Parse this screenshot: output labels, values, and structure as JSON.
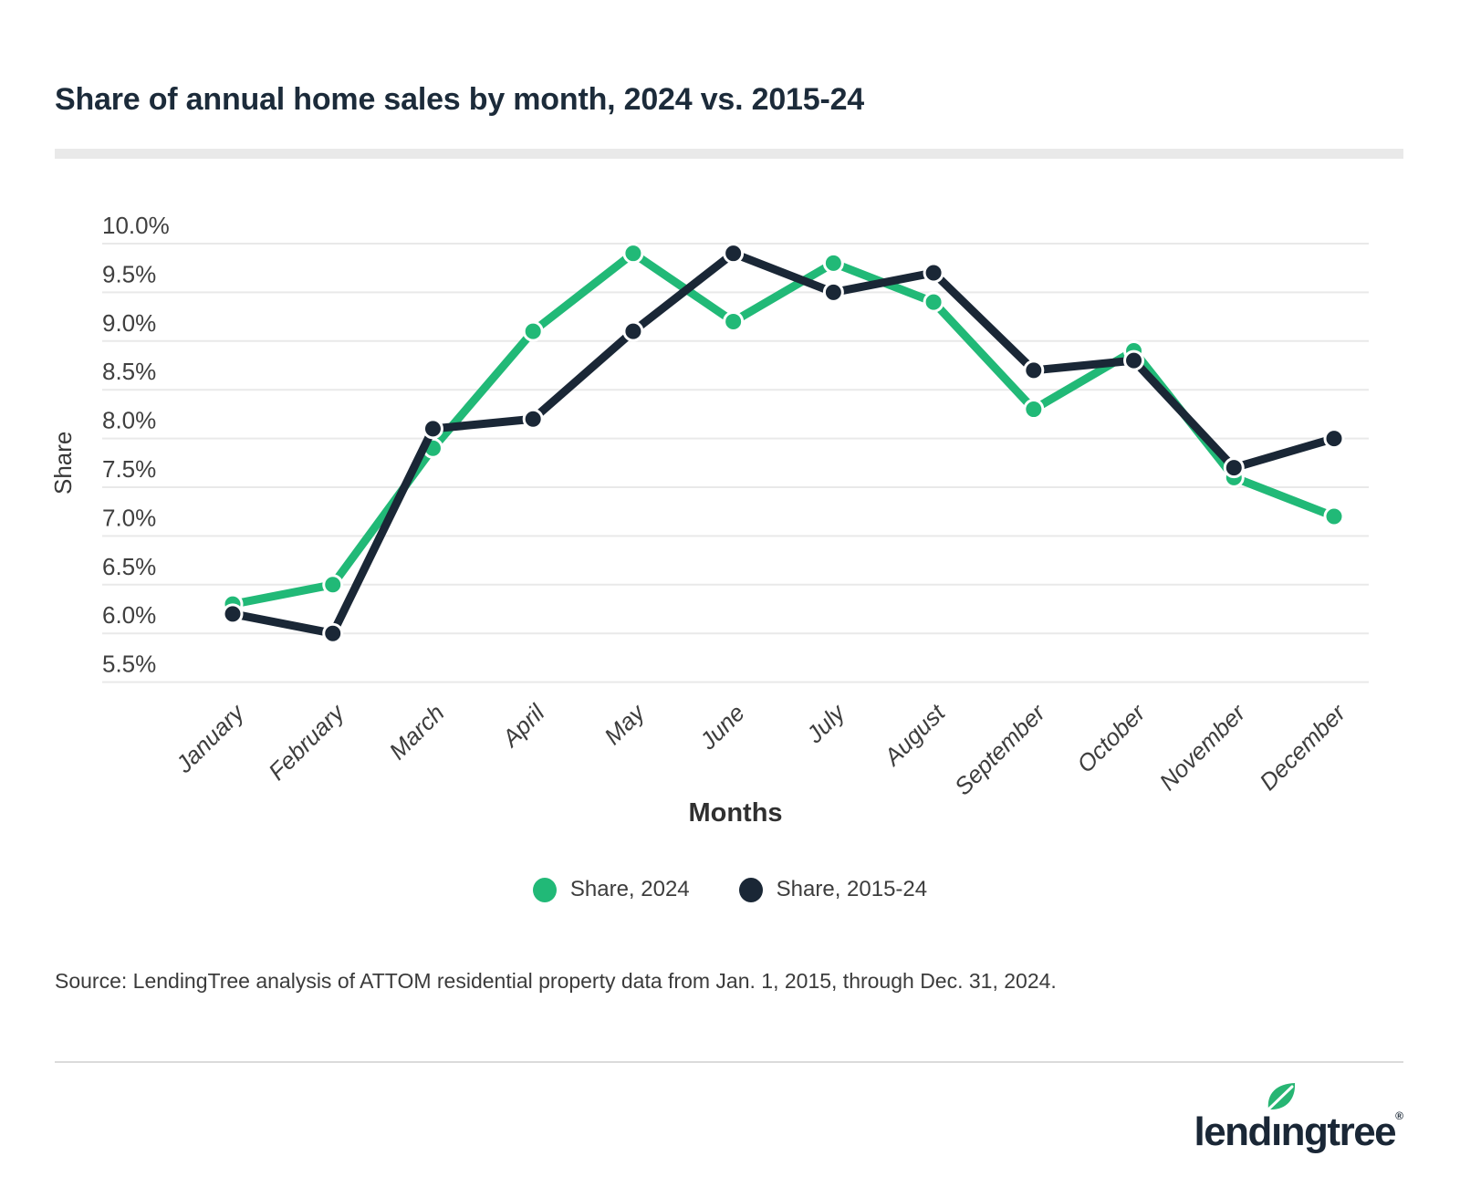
{
  "title": "Share of annual home sales by month, 2024 vs. 2015-24",
  "source": "Source: LendingTree analysis of ATTOM residential property data from Jan. 1, 2015, through Dec. 31, 2024.",
  "logo": {
    "pre": "lend",
    "dotless_i": "ı",
    "post": "ngtree",
    "registered": "®"
  },
  "colors": {
    "green": "#21b977",
    "navy": "#1a2736",
    "grid": "#e9e9e9",
    "title_text": "#1c2b3a",
    "axis_text": "#3f3f3f",
    "month_text": "#3d3d3d",
    "legend_text": "#3d3d3d",
    "dot_outline": "#ffffff"
  },
  "legend": {
    "items": [
      {
        "label": "Share, 2024",
        "color_key": "green"
      },
      {
        "label": "Share, 2015-24",
        "color_key": "navy"
      }
    ]
  },
  "chart_data": {
    "type": "line",
    "title": "Share of annual home sales by month, 2024 vs. 2015-24",
    "xlabel": "Months",
    "ylabel": "Share",
    "categories": [
      "January",
      "February",
      "March",
      "April",
      "May",
      "June",
      "July",
      "August",
      "September",
      "October",
      "November",
      "December"
    ],
    "series": [
      {
        "name": "Share, 2024",
        "color_key": "green",
        "values": [
          6.3,
          6.5,
          7.9,
          9.1,
          9.9,
          9.2,
          9.8,
          9.4,
          8.3,
          8.9,
          7.6,
          7.2
        ]
      },
      {
        "name": "Share, 2015-24",
        "color_key": "navy",
        "values": [
          6.2,
          6.0,
          8.1,
          8.2,
          9.1,
          9.9,
          9.5,
          9.7,
          8.7,
          8.8,
          7.7,
          8.0
        ]
      }
    ],
    "ylim": [
      5.5,
      10.0
    ],
    "ytick_step": 0.5,
    "yticks": [
      "10.0%",
      "9.5%",
      "9.0%",
      "8.5%",
      "8.0%",
      "7.5%",
      "7.0%",
      "6.5%",
      "6.0%",
      "5.5%"
    ],
    "grid": true,
    "legend_position": "bottom"
  }
}
